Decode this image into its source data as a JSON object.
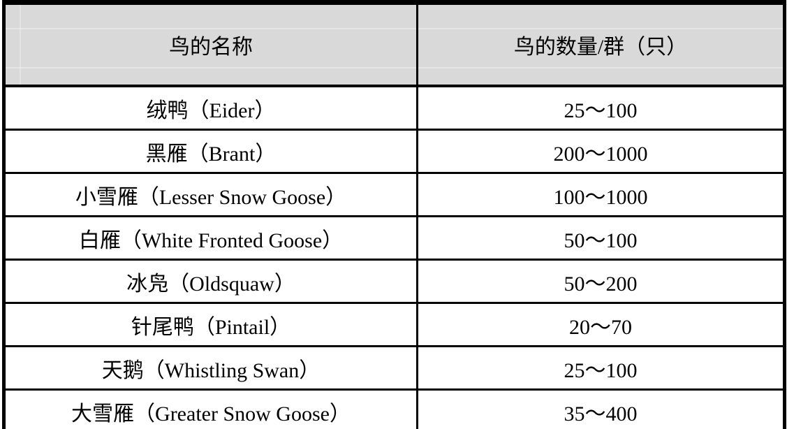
{
  "colors": {
    "header_background": "#d9d9d9",
    "border": "#000000",
    "text": "#000000",
    "row_background": "#ffffff"
  },
  "table": {
    "headers": [
      "鸟的名称",
      "鸟的数量/群（只）"
    ],
    "rows": [
      {
        "name": "绒鸭（Eider）",
        "count": "25～100"
      },
      {
        "name": "黑雁（Brant）",
        "count": "200～1000"
      },
      {
        "name": "小雪雁（Lesser Snow Goose）",
        "count": "100～1000"
      },
      {
        "name": "白雁（White Fronted Goose）",
        "count": "50～100"
      },
      {
        "name": "冰凫（Oldsquaw）",
        "count": "50～200"
      },
      {
        "name": "针尾鸭（Pintail）",
        "count": "20～70"
      },
      {
        "name": "天鹅（Whistling Swan）",
        "count": "25～100"
      },
      {
        "name": "大雪雁（Greater Snow Goose）",
        "count": "35～400"
      }
    ]
  },
  "chart_data": {
    "type": "table",
    "title": "",
    "columns": [
      "鸟的名称",
      "鸟的数量/群（只）"
    ],
    "rows": [
      [
        "绒鸭（Eider）",
        "25～100"
      ],
      [
        "黑雁（Brant）",
        "200～1000"
      ],
      [
        "小雪雁（Lesser Snow Goose）",
        "100～1000"
      ],
      [
        "白雁（White Fronted Goose）",
        "50～100"
      ],
      [
        "冰凫（Oldsquaw）",
        "50～200"
      ],
      [
        "针尾鸭（Pintail）",
        "20～70"
      ],
      [
        "天鹅（Whistling Swan）",
        "25～100"
      ],
      [
        "大雪雁（Greater Snow Goose）",
        "35～400"
      ]
    ]
  }
}
